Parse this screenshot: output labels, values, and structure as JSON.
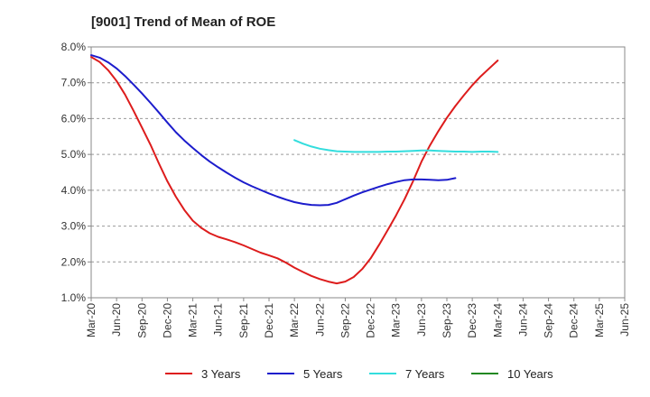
{
  "chart_data": {
    "type": "line",
    "title": "[9001]  Trend of Mean of ROE",
    "xlabel": "",
    "ylabel": "",
    "ylim": [
      1.0,
      8.0
    ],
    "y_ticks": [
      "1.0%",
      "2.0%",
      "3.0%",
      "4.0%",
      "5.0%",
      "6.0%",
      "7.0%",
      "8.0%"
    ],
    "y_tick_values": [
      1,
      2,
      3,
      4,
      5,
      6,
      7,
      8
    ],
    "x_ticks": [
      "Mar-20",
      "Jun-20",
      "Sep-20",
      "Dec-20",
      "Mar-21",
      "Jun-21",
      "Sep-21",
      "Dec-21",
      "Mar-22",
      "Jun-22",
      "Sep-22",
      "Dec-22",
      "Mar-23",
      "Jun-23",
      "Sep-23",
      "Dec-23",
      "Mar-24",
      "Jun-24",
      "Sep-24",
      "Dec-24",
      "Mar-25",
      "Jun-25"
    ],
    "grid": "horizontal-dashed",
    "legend_position": "bottom",
    "series": [
      {
        "name": "3 Years",
        "color": "#dd1c1c",
        "start_index": 0,
        "values": [
          7.72,
          7.58,
          7.35,
          7.05,
          6.67,
          6.22,
          5.75,
          5.27,
          4.75,
          4.25,
          3.82,
          3.45,
          3.15,
          2.95,
          2.8,
          2.7,
          2.63,
          2.55,
          2.46,
          2.36,
          2.26,
          2.18,
          2.1,
          1.98,
          1.84,
          1.72,
          1.61,
          1.52,
          1.45,
          1.4,
          1.45,
          1.58,
          1.8,
          2.1,
          2.48,
          2.88,
          3.3,
          3.75,
          4.25,
          4.8,
          5.25,
          5.65,
          6.02,
          6.35,
          6.65,
          6.93,
          7.18,
          7.4,
          7.62
        ]
      },
      {
        "name": "5 Years",
        "color": "#1c1ccc",
        "start_index": 0,
        "values": [
          7.77,
          7.7,
          7.57,
          7.4,
          7.19,
          6.95,
          6.7,
          6.44,
          6.17,
          5.89,
          5.62,
          5.39,
          5.18,
          4.98,
          4.8,
          4.64,
          4.49,
          4.35,
          4.22,
          4.11,
          4.01,
          3.91,
          3.82,
          3.74,
          3.67,
          3.62,
          3.59,
          3.58,
          3.59,
          3.65,
          3.75,
          3.85,
          3.94,
          4.02,
          4.1,
          4.17,
          4.23,
          4.28,
          4.3,
          4.3,
          4.29,
          4.28,
          4.29,
          4.34
        ]
      },
      {
        "name": "7 Years",
        "color": "#33dddd",
        "start_index": 24,
        "values": [
          5.4,
          5.3,
          5.22,
          5.16,
          5.12,
          5.09,
          5.08,
          5.07,
          5.07,
          5.07,
          5.07,
          5.08,
          5.08,
          5.09,
          5.1,
          5.11,
          5.11,
          5.1,
          5.09,
          5.08,
          5.08,
          5.07,
          5.08,
          5.08,
          5.07
        ]
      },
      {
        "name": "10 Years",
        "color": "#228822",
        "start_index": 0,
        "values": []
      }
    ]
  }
}
